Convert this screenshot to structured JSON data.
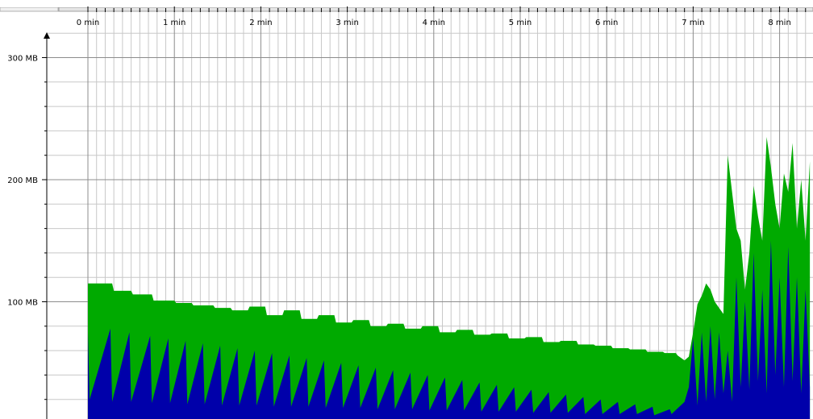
{
  "colors": {
    "heap_size": "#00aa00",
    "used_heap": "#0000aa",
    "grid_major": "#8c8c8c",
    "grid_minor": "#c8c8c8",
    "axis": "#000000",
    "background": "#ffffff"
  },
  "chart_data": {
    "type": "area",
    "title": "",
    "xlabel": "",
    "ylabel": "",
    "x_unit": "min",
    "y_unit": "MB",
    "xlim": [
      0,
      8.35
    ],
    "ylim": [
      0,
      320
    ],
    "x_ticks": [
      {
        "value": 0,
        "label": "0 min"
      },
      {
        "value": 1,
        "label": "1 min"
      },
      {
        "value": 2,
        "label": "2 min"
      },
      {
        "value": 3,
        "label": "3 min"
      },
      {
        "value": 4,
        "label": "4 min"
      },
      {
        "value": 5,
        "label": "5 min"
      },
      {
        "value": 6,
        "label": "6 min"
      },
      {
        "value": 7,
        "label": "7 min"
      },
      {
        "value": 8,
        "label": "8 min"
      }
    ],
    "y_ticks": [
      {
        "value": 100,
        "label": "100 MB"
      },
      {
        "value": 200,
        "label": "200 MB"
      },
      {
        "value": 300,
        "label": "300 MB"
      }
    ],
    "grid": true,
    "legend": "none",
    "series": [
      {
        "color": "#00aa00",
        "x": [
          0,
          0.28,
          0.3,
          0.5,
          0.52,
          0.74,
          0.76,
          1.0,
          1.02,
          1.2,
          1.22,
          1.45,
          1.47,
          1.65,
          1.67,
          1.85,
          1.87,
          2.05,
          2.07,
          2.25,
          2.27,
          2.45,
          2.47,
          2.65,
          2.67,
          2.85,
          2.87,
          3.05,
          3.07,
          3.25,
          3.27,
          3.45,
          3.47,
          3.65,
          3.67,
          3.85,
          3.87,
          4.05,
          4.07,
          4.25,
          4.27,
          4.45,
          4.47,
          4.65,
          4.67,
          4.85,
          4.87,
          5.05,
          5.07,
          5.25,
          5.27,
          5.45,
          5.47,
          5.65,
          5.67,
          5.85,
          5.87,
          6.05,
          6.07,
          6.25,
          6.27,
          6.45,
          6.47,
          6.65,
          6.67,
          6.8,
          6.82,
          6.9,
          6.95,
          7.0,
          7.05,
          7.1,
          7.15,
          7.2,
          7.25,
          7.3,
          7.35,
          7.4,
          7.45,
          7.5,
          7.55,
          7.6,
          7.65,
          7.7,
          7.75,
          7.8,
          7.85,
          7.9,
          7.95,
          8.0,
          8.05,
          8.1,
          8.15,
          8.2,
          8.25,
          8.3,
          8.35
        ],
        "values": [
          115,
          115,
          109,
          109,
          106,
          106,
          101,
          101,
          99,
          99,
          97,
          97,
          95,
          95,
          93,
          93,
          96,
          96,
          89,
          89,
          93,
          93,
          86,
          86,
          89,
          89,
          83,
          83,
          85,
          85,
          80,
          80,
          82,
          82,
          78,
          78,
          80,
          80,
          75,
          75,
          77,
          77,
          73,
          73,
          74,
          74,
          70,
          70,
          71,
          71,
          67,
          67,
          68,
          68,
          65,
          65,
          64,
          64,
          62,
          62,
          61,
          61,
          59,
          59,
          58,
          58,
          56,
          52,
          55,
          75,
          98,
          105,
          115,
          110,
          100,
          95,
          90,
          220,
          190,
          160,
          150,
          110,
          140,
          195,
          170,
          150,
          235,
          210,
          180,
          160,
          205,
          190,
          230,
          160,
          200,
          150,
          215
        ]
      },
      {
        "color": "#0000aa",
        "x": [
          0,
          0.02,
          0.26,
          0.28,
          0.48,
          0.5,
          0.72,
          0.74,
          0.93,
          0.95,
          1.13,
          1.15,
          1.33,
          1.35,
          1.53,
          1.55,
          1.73,
          1.75,
          1.93,
          1.95,
          2.13,
          2.15,
          2.33,
          2.35,
          2.53,
          2.55,
          2.73,
          2.75,
          2.93,
          2.95,
          3.13,
          3.15,
          3.33,
          3.35,
          3.53,
          3.55,
          3.73,
          3.75,
          3.93,
          3.95,
          4.13,
          4.15,
          4.33,
          4.35,
          4.53,
          4.55,
          4.73,
          4.75,
          4.93,
          4.95,
          5.13,
          5.15,
          5.33,
          5.35,
          5.53,
          5.55,
          5.73,
          5.75,
          5.93,
          5.95,
          6.13,
          6.15,
          6.33,
          6.35,
          6.53,
          6.55,
          6.73,
          6.75,
          6.9,
          6.95,
          7.0,
          7.05,
          7.1,
          7.15,
          7.2,
          7.25,
          7.3,
          7.35,
          7.4,
          7.45,
          7.5,
          7.55,
          7.6,
          7.65,
          7.7,
          7.75,
          7.8,
          7.85,
          7.9,
          7.95,
          8.0,
          8.05,
          8.1,
          8.15,
          8.2,
          8.25,
          8.3,
          8.35
        ],
        "values": [
          75,
          20,
          78,
          18,
          75,
          18,
          72,
          17,
          70,
          17,
          68,
          16,
          66,
          16,
          64,
          15,
          62,
          15,
          60,
          15,
          58,
          14,
          56,
          14,
          54,
          14,
          52,
          13,
          50,
          13,
          48,
          13,
          46,
          12,
          44,
          12,
          42,
          12,
          40,
          11,
          38,
          11,
          36,
          11,
          34,
          10,
          32,
          10,
          30,
          10,
          28,
          9,
          26,
          9,
          24,
          9,
          22,
          8,
          20,
          8,
          18,
          8,
          16,
          8,
          14,
          7,
          12,
          8,
          18,
          30,
          70,
          15,
          75,
          18,
          80,
          20,
          75,
          25,
          60,
          18,
          120,
          30,
          100,
          28,
          140,
          35,
          110,
          25,
          150,
          40,
          120,
          30,
          145,
          35,
          120,
          25,
          110,
          30
        ]
      }
    ]
  }
}
